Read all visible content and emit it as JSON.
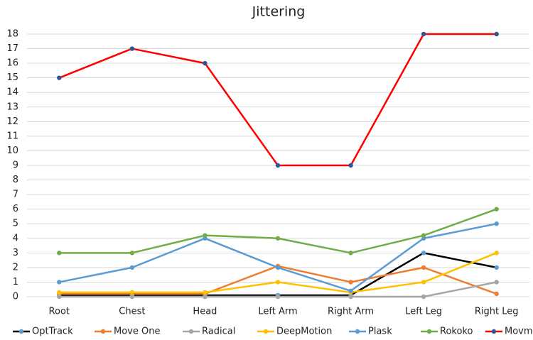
{
  "chart_data": {
    "type": "line",
    "title": "Jittering",
    "categories": [
      "Root",
      "Chest",
      "Head",
      "Left Arm",
      "Right Arm",
      "Left Leg",
      "Right Leg"
    ],
    "series": [
      {
        "name": "OptTrack",
        "color": "#000000",
        "marker_color": "#5b9bd5",
        "values": [
          0.1,
          0.1,
          0.1,
          0.1,
          0.1,
          3,
          2
        ]
      },
      {
        "name": "Move One",
        "color": "#ed7d31",
        "values": [
          0.2,
          0.2,
          0.2,
          2.1,
          1,
          2,
          0.2
        ]
      },
      {
        "name": "Radical",
        "color": "#a5a5a5",
        "values": [
          0,
          0,
          0,
          0,
          0,
          0,
          1
        ]
      },
      {
        "name": "DeepMotion",
        "color": "#ffc000",
        "values": [
          0.3,
          0.3,
          0.3,
          1,
          0.3,
          1,
          3
        ]
      },
      {
        "name": "Plask",
        "color": "#5b9bd5",
        "values": [
          1,
          2,
          4,
          2,
          0.4,
          4,
          5
        ]
      },
      {
        "name": "Rokoko",
        "color": "#70ad47",
        "values": [
          3,
          3,
          4.2,
          4,
          3,
          4.2,
          6
        ]
      },
      {
        "name": "Movmi",
        "color": "#ff0000",
        "marker_color": "#2f5597",
        "values": [
          15,
          17,
          16,
          9,
          9,
          18,
          18
        ]
      }
    ],
    "ylim": [
      0,
      18
    ],
    "yticks": [
      0,
      1,
      2,
      3,
      4,
      5,
      6,
      7,
      8,
      9,
      10,
      11,
      12,
      13,
      14,
      15,
      16,
      17,
      18
    ],
    "grid": true,
    "legend": "bottom"
  }
}
